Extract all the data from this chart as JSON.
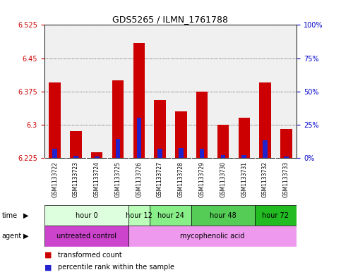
{
  "title": "GDS5265 / ILMN_1761788",
  "samples": [
    "GSM1133722",
    "GSM1133723",
    "GSM1133724",
    "GSM1133725",
    "GSM1133726",
    "GSM1133727",
    "GSM1133728",
    "GSM1133729",
    "GSM1133730",
    "GSM1133731",
    "GSM1133732",
    "GSM1133733"
  ],
  "red_values": [
    6.395,
    6.285,
    6.238,
    6.4,
    6.485,
    6.355,
    6.33,
    6.375,
    6.3,
    6.315,
    6.395,
    6.29
  ],
  "blue_values": [
    6.245,
    6.23,
    6.228,
    6.268,
    6.315,
    6.245,
    6.248,
    6.245,
    6.232,
    6.232,
    6.265,
    6.228
  ],
  "ymin": 6.225,
  "ymax": 6.525,
  "yticks": [
    6.225,
    6.3,
    6.375,
    6.45,
    6.525
  ],
  "ytick_labels": [
    "6.225",
    "6.3",
    "6.375",
    "6.45",
    "6.525"
  ],
  "y2ticks": [
    0,
    25,
    50,
    75,
    100
  ],
  "y2labels": [
    "0%",
    "25%",
    "50%",
    "75%",
    "100%"
  ],
  "bar_width": 0.55,
  "blue_bar_width": 0.22,
  "red_color": "#cc0000",
  "blue_color": "#2222cc",
  "bg_plot": "#f0f0f0",
  "grid_color": "black",
  "sample_bg": "#cccccc",
  "time_groups": [
    {
      "label": "hour 0",
      "start": 0,
      "end": 3,
      "color": "#ddffdd"
    },
    {
      "label": "hour 12",
      "start": 4,
      "end": 4,
      "color": "#bbffbb"
    },
    {
      "label": "hour 24",
      "start": 5,
      "end": 6,
      "color": "#88ee88"
    },
    {
      "label": "hour 48",
      "start": 7,
      "end": 9,
      "color": "#55cc55"
    },
    {
      "label": "hour 72",
      "start": 10,
      "end": 11,
      "color": "#22bb22"
    }
  ],
  "agent_groups": [
    {
      "label": "untreated control",
      "start": 0,
      "end": 3,
      "color": "#cc44cc"
    },
    {
      "label": "mycophenolic acid",
      "start": 4,
      "end": 11,
      "color": "#ee99ee"
    }
  ],
  "ylabel_left_color": "#cc0000",
  "ylabel_right_color": "#0000cc"
}
